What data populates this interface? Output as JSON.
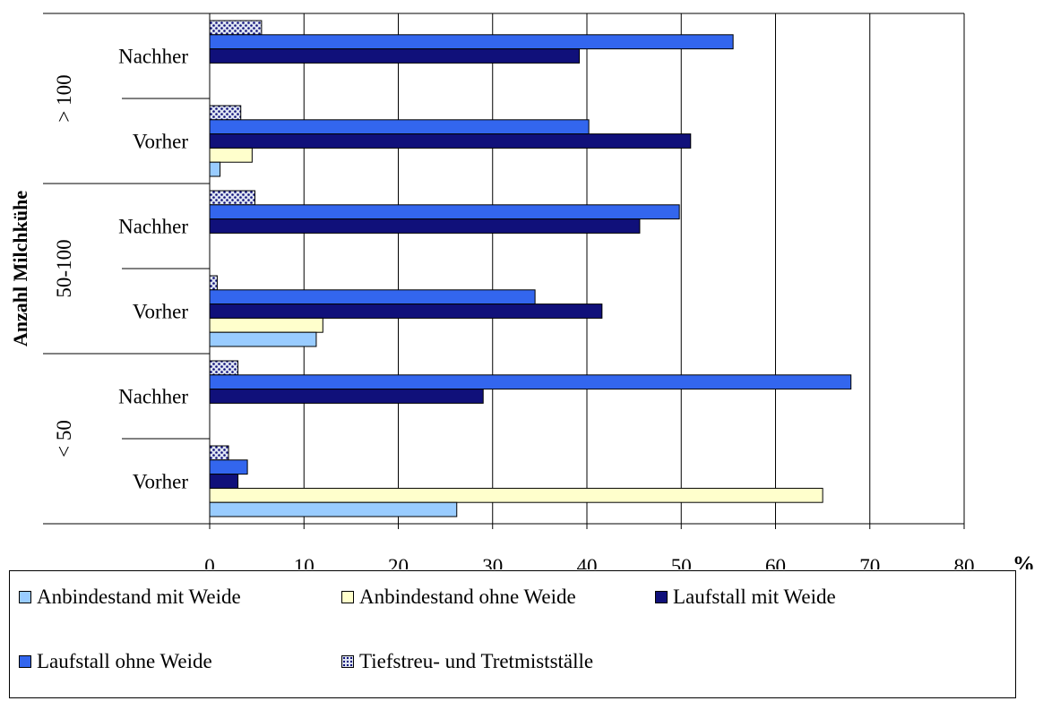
{
  "chart_data": {
    "type": "bar",
    "orientation": "horizontal",
    "ylabel": "Anzahl Milchkühe",
    "x_unit": "%",
    "xlim": [
      0,
      80
    ],
    "x_ticks": [
      "0",
      "10",
      "20",
      "30",
      "40",
      "50",
      "60",
      "70",
      "80"
    ],
    "grid": "vertical",
    "groups": [
      "> 100",
      "50-100",
      "< 50"
    ],
    "categories": [
      {
        "group": "> 100",
        "label": "Nachher"
      },
      {
        "group": "> 100",
        "label": "Vorher"
      },
      {
        "group": "50-100",
        "label": "Nachher"
      },
      {
        "group": "50-100",
        "label": "Vorher"
      },
      {
        "group": "< 50",
        "label": "Nachher"
      },
      {
        "group": "< 50",
        "label": "Vorher"
      }
    ],
    "series": [
      {
        "name": "Tiefstreu- und Tretmistställe",
        "color": "#dfe6f2",
        "pattern": "dotted",
        "values": [
          5.5,
          3.3,
          4.8,
          0.8,
          3.0,
          2.0
        ]
      },
      {
        "name": "Laufstall ohne Weide",
        "color": "#3366ee",
        "values": [
          55.5,
          40.2,
          49.8,
          34.5,
          68.0,
          4.0
        ]
      },
      {
        "name": "Laufstall mit Weide",
        "color": "#10107a",
        "values": [
          39.2,
          51.0,
          45.6,
          41.6,
          29.0,
          3.0
        ]
      },
      {
        "name": "Anbindestand ohne Weide",
        "color": "#ffffcc",
        "values": [
          0,
          4.5,
          0,
          12.0,
          0,
          65.0
        ]
      },
      {
        "name": "Anbindestand mit Weide",
        "color": "#99ccff",
        "values": [
          0,
          1.1,
          0,
          11.3,
          0,
          26.2
        ]
      }
    ],
    "legend": {
      "placement": "bottom",
      "order": [
        "Anbindestand mit Weide",
        "Anbindestand ohne Weide",
        "Laufstall mit Weide",
        "Laufstall ohne Weide",
        "Tiefstreu- und Tretmistställe"
      ]
    }
  }
}
